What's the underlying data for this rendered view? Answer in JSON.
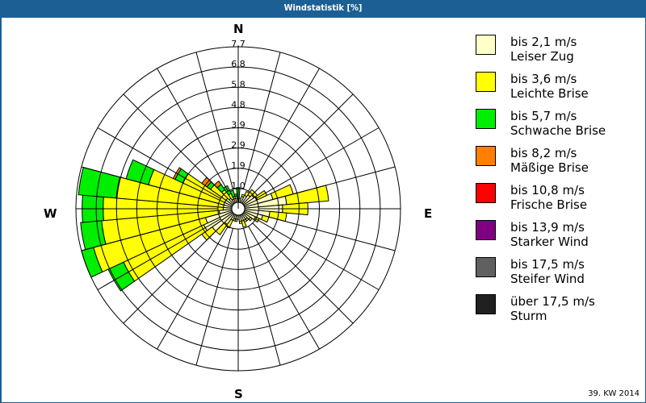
{
  "window": {
    "title": "Windstatistik [%]"
  },
  "footer": {
    "period": "39. KW 2014"
  },
  "compass": {
    "n": "N",
    "e": "E",
    "s": "S",
    "w": "W"
  },
  "legend": [
    {
      "line1": "bis 2,1 m/s",
      "line2": "Leiser Zug",
      "color": "#ffffc8"
    },
    {
      "line1": "bis 3,6 m/s",
      "line2": "Leichte Brise",
      "color": "#ffff00"
    },
    {
      "line1": "bis 5,7 m/s",
      "line2": "Schwache Brise",
      "color": "#00ee00"
    },
    {
      "line1": "bis 8,2 m/s",
      "line2": "Mäßige Brise",
      "color": "#ff7f00"
    },
    {
      "line1": "bis 10,8 m/s",
      "line2": "Frische Brise",
      "color": "#ff0000"
    },
    {
      "line1": "bis 13,9 m/s",
      "line2": "Starker Wind",
      "color": "#800080"
    },
    {
      "line1": "bis 17,5 m/s",
      "line2": "Steifer Wind",
      "color": "#606060"
    },
    {
      "line1": "über 17,5 m/s",
      "line2": "Sturm",
      "color": "#202020"
    }
  ],
  "chart_data": {
    "type": "polar-bar (wind rose)",
    "title": "Windstatistik [%]",
    "subtitle": "39. KW 2014",
    "unit": "%",
    "radial_ticks": [
      "1,0",
      "1,9",
      "2,9",
      "3,9",
      "4,8",
      "5,8",
      "6,8",
      "7,7"
    ],
    "radial_max": 7.7,
    "directions_deg": [
      0,
      10,
      20,
      30,
      40,
      50,
      60,
      70,
      80,
      90,
      100,
      110,
      120,
      130,
      140,
      150,
      160,
      170,
      180,
      190,
      200,
      210,
      220,
      230,
      240,
      250,
      260,
      270,
      280,
      290,
      300,
      310,
      320,
      330,
      340,
      350
    ],
    "series": [
      {
        "name": "bis 2,1 m/s Leiser Zug",
        "values": [
          0.2,
          0.2,
          0.3,
          0.4,
          0.5,
          0.6,
          0.7,
          1.4,
          2.0,
          1.8,
          1.2,
          0.9,
          0.6,
          0.4,
          0.3,
          0.3,
          0.3,
          0.3,
          0.2,
          0.2,
          0.2,
          0.3,
          0.6,
          1.2,
          1.5,
          1.3,
          0.6,
          0.4,
          0.4,
          0.4,
          0.4,
          0.4,
          0.3,
          0.2,
          0.2,
          0.2
        ]
      },
      {
        "name": "bis 3,6 m/s Leichte Brise",
        "values": [
          0.0,
          0.0,
          0.1,
          0.2,
          0.3,
          0.2,
          0.5,
          1.0,
          2.0,
          1.2,
          0.8,
          0.3,
          0.2,
          0.1,
          0.1,
          0.1,
          0.3,
          0.1,
          0.0,
          0.1,
          0.1,
          0.4,
          0.6,
          0.6,
          4.2,
          5.5,
          5.6,
          5.7,
          5.1,
          3.7,
          2.2,
          0.9,
          0.5,
          0.3,
          0.1,
          0.1
        ]
      },
      {
        "name": "bis 5,7 m/s Schwache Brise",
        "values": [
          0.5,
          0.0,
          0.0,
          0.0,
          0.0,
          0.0,
          0.0,
          0.0,
          0.0,
          0.0,
          0.0,
          0.0,
          0.0,
          0.0,
          0.0,
          0.0,
          0.0,
          0.0,
          0.0,
          0.0,
          0.0,
          0.0,
          0.0,
          0.0,
          0.8,
          1.3,
          1.0,
          1.0,
          1.8,
          1.1,
          0.4,
          0.2,
          0.3,
          0.4,
          0.3,
          0.1
        ]
      },
      {
        "name": "bis 8,2 m/s Mäßige Brise",
        "values": [
          0,
          0,
          0,
          0,
          0,
          0,
          0,
          0,
          0,
          0,
          0,
          0,
          0,
          0,
          0,
          0,
          0,
          0,
          0,
          0,
          0,
          0,
          0,
          0,
          0,
          0,
          0,
          0,
          0,
          0,
          0.1,
          0.3,
          0.2,
          0,
          0,
          0
        ]
      },
      {
        "name": "bis 10,8 m/s Frische Brise",
        "values": [
          0,
          0,
          0,
          0,
          0,
          0,
          0,
          0,
          0,
          0,
          0,
          0,
          0,
          0,
          0,
          0,
          0,
          0,
          0,
          0,
          0,
          0,
          0,
          0,
          0,
          0,
          0,
          0,
          0,
          0,
          0,
          0,
          0,
          0,
          0,
          0
        ]
      },
      {
        "name": "bis 13,9 m/s Starker Wind",
        "values": [
          0,
          0,
          0,
          0,
          0,
          0,
          0,
          0,
          0,
          0,
          0,
          0,
          0,
          0,
          0,
          0,
          0,
          0,
          0,
          0,
          0,
          0,
          0,
          0,
          0,
          0,
          0,
          0,
          0,
          0,
          0,
          0,
          0,
          0,
          0,
          0
        ]
      },
      {
        "name": "bis 17,5 m/s Steifer Wind",
        "values": [
          0,
          0,
          0,
          0,
          0,
          0,
          0,
          0,
          0,
          0,
          0,
          0,
          0,
          0,
          0,
          0,
          0,
          0,
          0,
          0,
          0,
          0,
          0,
          0,
          0,
          0,
          0,
          0,
          0,
          0,
          0,
          0,
          0,
          0,
          0,
          0
        ]
      },
      {
        "name": "über 17,5 m/s Sturm",
        "values": [
          0,
          0,
          0,
          0,
          0,
          0,
          0,
          0,
          0,
          0,
          0,
          0,
          0,
          0,
          0,
          0,
          0,
          0,
          0,
          0,
          0,
          0,
          0,
          0,
          0,
          0,
          0,
          0,
          0,
          0,
          0,
          0,
          0,
          0,
          0,
          0
        ]
      }
    ],
    "grid": true,
    "legend_position": "right"
  }
}
